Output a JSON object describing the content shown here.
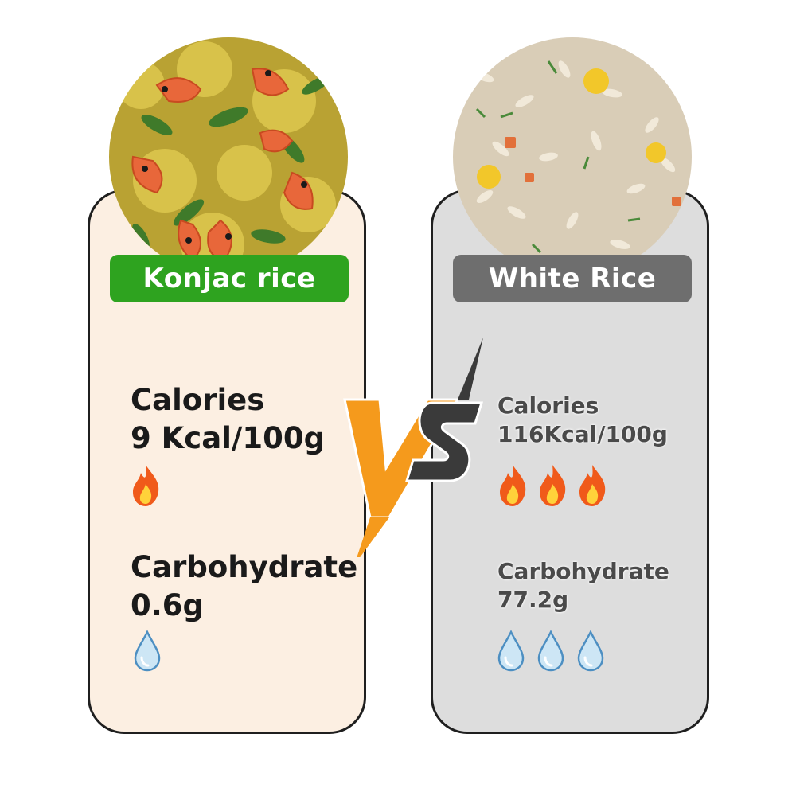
{
  "left": {
    "title": "Konjac rice",
    "accent": "#2ea31f",
    "card_bg": "#fcefe2",
    "calories_label": "Calories",
    "calories_value": "9 Kcal/100g",
    "calorie_icons": 1,
    "carb_label": "Carbohydrate",
    "carb_value": "0.6g",
    "carb_icons": 1
  },
  "right": {
    "title": "White Rice",
    "accent": "#6e6e6e",
    "card_bg": "#dddddd",
    "calories_label": "Calories",
    "calories_value": "116Kcal/100g",
    "calorie_icons": 3,
    "carb_label": "Carbohydrate",
    "carb_value": "77.2g",
    "carb_icons": 3
  },
  "icons": {
    "calorie": "flame-icon",
    "carb": "water-drop-icon"
  },
  "colors": {
    "flame": "#f05a1a",
    "drop": "#7fb6dd",
    "vs_v": "#f59a1c",
    "vs_s": "#3a3a3a"
  }
}
